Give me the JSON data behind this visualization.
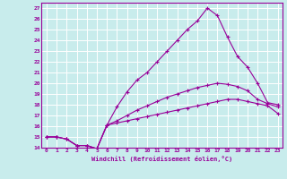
{
  "xlabel": "Windchill (Refroidissement éolien,°C)",
  "background_color": "#c8ecec",
  "grid_color": "#ffffff",
  "line_color": "#990099",
  "x_values": [
    0,
    1,
    2,
    3,
    4,
    5,
    6,
    7,
    8,
    9,
    10,
    11,
    12,
    13,
    14,
    15,
    16,
    17,
    18,
    19,
    20,
    21,
    22,
    23
  ],
  "xlim": [
    -0.5,
    23.5
  ],
  "ylim": [
    14,
    27.5
  ],
  "yticks": [
    14,
    15,
    16,
    17,
    18,
    19,
    20,
    21,
    22,
    23,
    24,
    25,
    26,
    27
  ],
  "series": [
    [
      15.0,
      15.0,
      14.8,
      14.2,
      14.2,
      13.9,
      16.1,
      16.3,
      16.5,
      16.7,
      16.9,
      17.1,
      17.3,
      17.5,
      17.7,
      17.9,
      18.1,
      18.3,
      18.5,
      18.5,
      18.3,
      18.1,
      17.9,
      17.2
    ],
    [
      15.0,
      15.0,
      14.8,
      14.2,
      14.2,
      13.9,
      16.1,
      16.5,
      17.0,
      17.5,
      17.9,
      18.3,
      18.7,
      19.0,
      19.3,
      19.6,
      19.8,
      20.0,
      19.9,
      19.7,
      19.3,
      18.5,
      18.1,
      17.8
    ],
    [
      15.0,
      15.0,
      14.8,
      14.2,
      14.2,
      13.9,
      16.1,
      17.8,
      19.2,
      20.3,
      21.0,
      22.0,
      23.0,
      24.0,
      25.0,
      25.8,
      27.0,
      26.3,
      24.3,
      22.5,
      21.5,
      20.0,
      18.2,
      18.0
    ]
  ]
}
